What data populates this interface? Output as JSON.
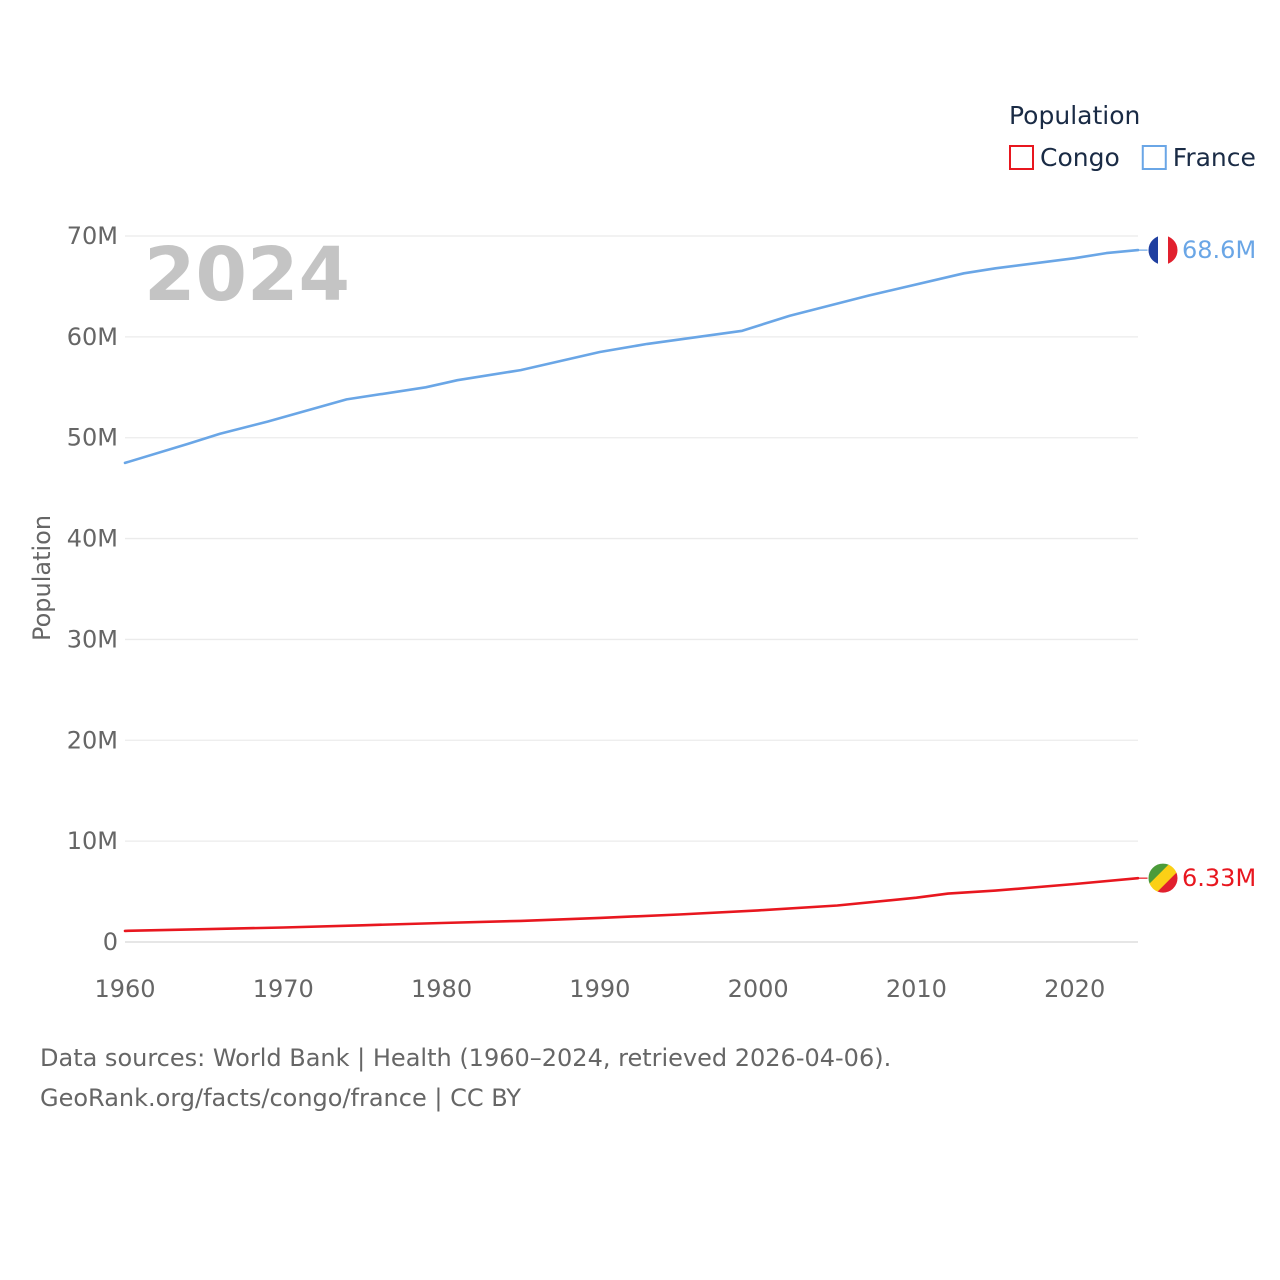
{
  "chart_data": {
    "type": "line",
    "ylabel": "Population",
    "xlim": [
      1960,
      2024
    ],
    "ylim": [
      0,
      70000000
    ],
    "yticks": [
      {
        "value": 0,
        "label": "0"
      },
      {
        "value": 10000000,
        "label": "10M"
      },
      {
        "value": 20000000,
        "label": "20M"
      },
      {
        "value": 30000000,
        "label": "30M"
      },
      {
        "value": 40000000,
        "label": "40M"
      },
      {
        "value": 50000000,
        "label": "50M"
      },
      {
        "value": 60000000,
        "label": "60M"
      },
      {
        "value": 70000000,
        "label": "70M"
      }
    ],
    "xticks": [
      {
        "value": 1960,
        "label": "1960"
      },
      {
        "value": 1970,
        "label": "1970"
      },
      {
        "value": 1980,
        "label": "1980"
      },
      {
        "value": 1990,
        "label": "1990"
      },
      {
        "value": 2000,
        "label": "2000"
      },
      {
        "value": 2010,
        "label": "2010"
      },
      {
        "value": 2020,
        "label": "2020"
      }
    ],
    "year_label": "2024",
    "legend": {
      "title": "Population",
      "position": "top-right"
    },
    "series": [
      {
        "name": "Congo",
        "color": "#e8171f",
        "end_label": "6.33M",
        "flag_icon": "congo-flag-icon",
        "x": [
          1960,
          1965,
          1970,
          1975,
          1980,
          1985,
          1990,
          1995,
          2000,
          2005,
          2010,
          2012,
          2015,
          2020,
          2024
        ],
        "values": [
          1100000,
          1270000,
          1440000,
          1660000,
          1880000,
          2090000,
          2390000,
          2730000,
          3130000,
          3620000,
          4390000,
          4800000,
          5100000,
          5750000,
          6330000
        ]
      },
      {
        "name": "France",
        "color": "#6aa6e6",
        "end_label": "68.6M",
        "flag_icon": "france-flag-icon",
        "x": [
          1960,
          1964,
          1966,
          1969,
          1974,
          1979,
          1981,
          1985,
          1990,
          1993,
          1999,
          2002,
          2007,
          2013,
          2015,
          2020,
          2022,
          2024
        ],
        "values": [
          47500000,
          49400000,
          50400000,
          51600000,
          53800000,
          55000000,
          55700000,
          56700000,
          58500000,
          59300000,
          60600000,
          62100000,
          64100000,
          66300000,
          66800000,
          67800000,
          68300000,
          68600000
        ]
      }
    ]
  },
  "footer": {
    "line1": "Data sources: World Bank | Health (1960–2024, retrieved 2026-04-06).",
    "line2": "GeoRank.org/facts/congo/france | CC BY"
  }
}
